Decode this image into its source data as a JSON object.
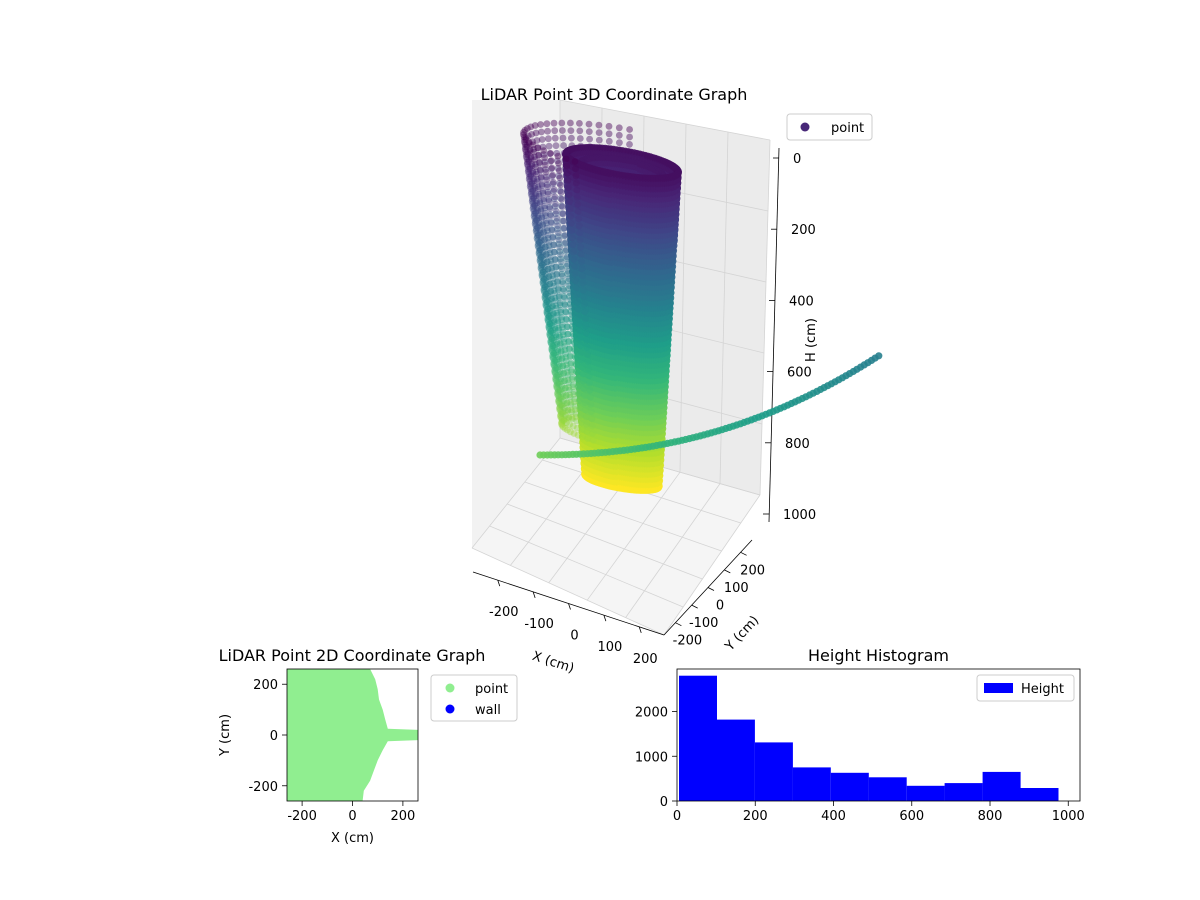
{
  "chart_data": [
    {
      "type": "scatter",
      "projection": "3d",
      "title": "LiDAR Point 3D Coordinate Graph",
      "xlabel": "X (cm)",
      "ylabel": "Y (cm)",
      "zlabel": "H (cm)",
      "xlim": [
        -270,
        270
      ],
      "ylim": [
        -270,
        270
      ],
      "zlim": [
        1050,
        0
      ],
      "z_inverted": true,
      "xticks": [
        -200,
        -100,
        0,
        100,
        200
      ],
      "yticks": [
        -200,
        -100,
        0,
        100,
        200
      ],
      "zticks": [
        0,
        200,
        400,
        600,
        800,
        1000
      ],
      "colormap": "viridis",
      "grid": true,
      "legend": {
        "placement": "top-right",
        "entries": [
          "point"
        ]
      },
      "series": [
        {
          "name": "point",
          "color": "#482878",
          "structure": "cylindrical shells of points, approx radii in cm",
          "shells": [
            {
              "radius": 260,
              "h_range": [
                0,
                1000
              ],
              "arc_deg": [
                100,
                260
              ]
            },
            {
              "radius": 150,
              "h_range": [
                0,
                1000
              ],
              "arc_deg": [
                0,
                360
              ]
            },
            {
              "radius": 110,
              "h_range": [
                0,
                900
              ],
              "arc_deg": [
                0,
                360
              ]
            }
          ],
          "extra_arc": {
            "radius": 260,
            "h": 820,
            "arc_deg": [
              260,
              400
            ]
          }
        }
      ]
    },
    {
      "type": "scatter",
      "title": "LiDAR Point 2D Coordinate Graph",
      "xlabel": "X (cm)",
      "ylabel": "Y (cm)",
      "xlim": [
        -260,
        260
      ],
      "ylim": [
        -260,
        260
      ],
      "xticks": [
        -200,
        0,
        200
      ],
      "yticks": [
        -200,
        0,
        200
      ],
      "legend": {
        "placement": "outside-right",
        "entries": [
          "point",
          "wall"
        ]
      },
      "series": [
        {
          "name": "point",
          "color": "#90ee90",
          "boundary_x_by_y": [
            [
              260,
              70
            ],
            [
              220,
              90
            ],
            [
              180,
              100
            ],
            [
              140,
              105
            ],
            [
              100,
              120
            ],
            [
              60,
              130
            ],
            [
              25,
              140
            ],
            [
              20,
              260
            ],
            [
              -20,
              260
            ],
            [
              -25,
              140
            ],
            [
              -60,
              120
            ],
            [
              -100,
              100
            ],
            [
              -140,
              85
            ],
            [
              -180,
              70
            ],
            [
              -220,
              45
            ],
            [
              -260,
              40
            ]
          ]
        },
        {
          "name": "wall",
          "color": "#0000ff",
          "points": []
        }
      ]
    },
    {
      "type": "bar",
      "subtype": "histogram",
      "title": "Height Histogram",
      "xlabel": "",
      "ylabel": "",
      "xlim": [
        0,
        1030
      ],
      "ylim": [
        0,
        2950
      ],
      "xticks": [
        0,
        200,
        400,
        600,
        800,
        1000
      ],
      "yticks": [
        0,
        1000,
        2000
      ],
      "legend": {
        "placement": "top-right",
        "entries": [
          "Height"
        ]
      },
      "bin_edges": [
        5,
        102,
        199,
        296,
        393,
        490,
        587,
        684,
        781,
        878,
        975
      ],
      "series": [
        {
          "name": "Height",
          "color": "#0000ff",
          "values": [
            2800,
            1820,
            1310,
            750,
            630,
            530,
            340,
            400,
            650,
            290
          ]
        }
      ]
    }
  ]
}
